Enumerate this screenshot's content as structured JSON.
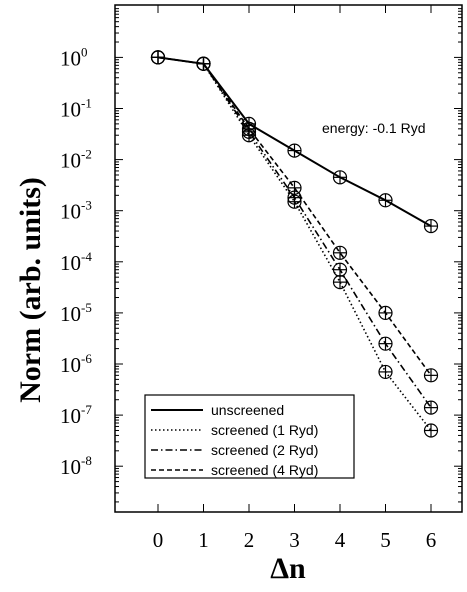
{
  "chart_data": {
    "type": "line",
    "title": "",
    "xlabel": "Δn",
    "ylabel": "Norm (arb. units)",
    "x": [
      0,
      1,
      2,
      3,
      4,
      5,
      6
    ],
    "xlim": [
      -0.6,
      6.6
    ],
    "ylim": [
      1e-09,
      10.0
    ],
    "yscale": "log",
    "y_ticks": [
      {
        "base": "10",
        "exp": "0",
        "value": 1
      },
      {
        "base": "10",
        "exp": "-1",
        "value": 0.1
      },
      {
        "base": "10",
        "exp": "-2",
        "value": 0.01
      },
      {
        "base": "10",
        "exp": "-3",
        "value": 0.001
      },
      {
        "base": "10",
        "exp": "-4",
        "value": 0.0001
      },
      {
        "base": "10",
        "exp": "-5",
        "value": 1e-05
      },
      {
        "base": "10",
        "exp": "-6",
        "value": 1e-06
      },
      {
        "base": "10",
        "exp": "-7",
        "value": 1e-07
      },
      {
        "base": "10",
        "exp": "-8",
        "value": 1e-08
      }
    ],
    "x_ticks": [
      "0",
      "1",
      "2",
      "3",
      "4",
      "5",
      "6"
    ],
    "annotation": "energy: -0.1 Ryd",
    "legend_position": "bottom-left",
    "grid": false,
    "series": [
      {
        "name": "unscreened",
        "dash": "solid",
        "values": [
          1.0,
          0.75,
          0.05,
          0.015,
          0.0045,
          0.0016,
          0.0005
        ]
      },
      {
        "name": "screened (1 Ryd)",
        "dash": "dotted",
        "values": [
          1.0,
          0.75,
          0.03,
          0.0015,
          4e-05,
          7e-07,
          5e-08
        ]
      },
      {
        "name": "screened (2 Ryd)",
        "dash": "dashdot",
        "values": [
          1.0,
          0.75,
          0.035,
          0.0018,
          7e-05,
          2.5e-06,
          1.4e-07
        ]
      },
      {
        "name": "screened (4 Ryd)",
        "dash": "dashed",
        "values": [
          1.0,
          0.75,
          0.04,
          0.0028,
          0.00015,
          1e-05,
          6e-07
        ]
      }
    ]
  }
}
